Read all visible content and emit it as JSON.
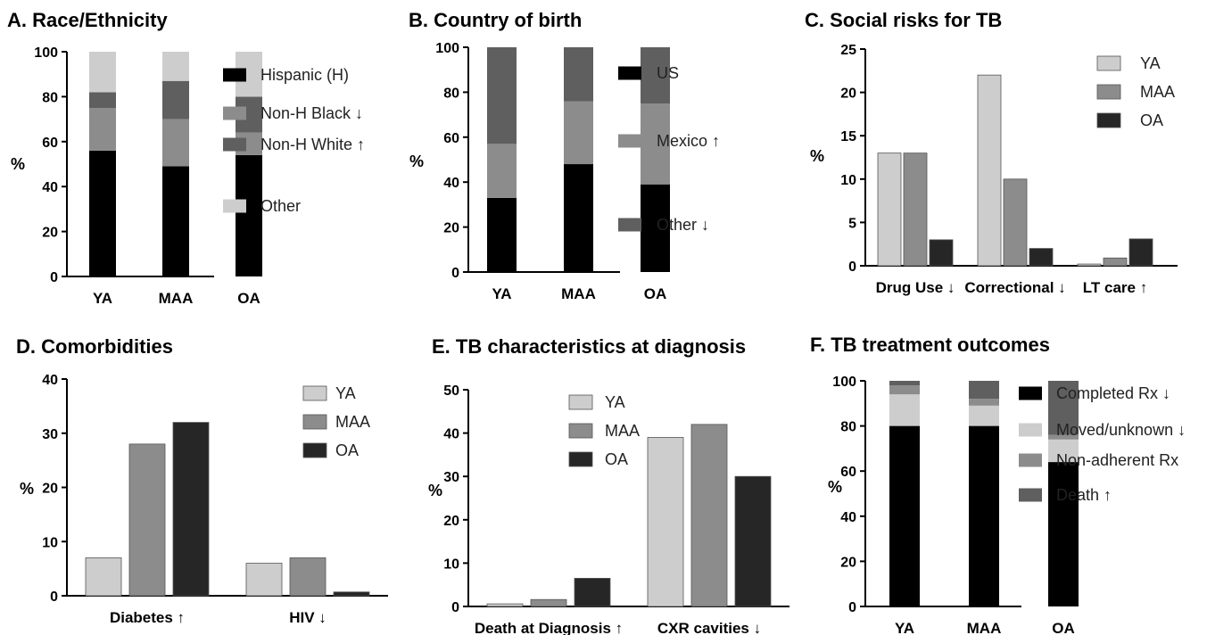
{
  "panels": [
    {
      "id": "A",
      "title": "A. Race/Ethnicity",
      "chart_data": {
        "type": "bar",
        "stacked": true,
        "title": "A. Race/Ethnicity",
        "xlabel": "",
        "ylabel": "%",
        "ylim": [
          0,
          100
        ],
        "yticks": [
          0,
          20,
          40,
          60,
          80,
          100
        ],
        "categories": [
          "YA",
          "MAA",
          "OA"
        ],
        "series": [
          {
            "name": "Hispanic (H)",
            "color": "#000000",
            "values": [
              56,
              49,
              54
            ]
          },
          {
            "name": "Non-H Black ↓",
            "color": "#8c8c8c",
            "values": [
              19,
              21,
              10
            ]
          },
          {
            "name": "Non-H White ↑",
            "color": "#5f5f5f",
            "values": [
              7,
              17,
              16
            ]
          },
          {
            "name": "Other",
            "color": "#cdcdcd",
            "values": [
              18,
              13,
              20
            ]
          }
        ],
        "legend": "right"
      }
    },
    {
      "id": "B",
      "title": "B. Country of birth",
      "chart_data": {
        "type": "bar",
        "stacked": true,
        "title": "B. Country of birth",
        "xlabel": "",
        "ylabel": "%",
        "ylim": [
          0,
          100
        ],
        "yticks": [
          0,
          20,
          40,
          60,
          80,
          100
        ],
        "categories": [
          "YA",
          "MAA",
          "OA"
        ],
        "series": [
          {
            "name": "US",
            "color": "#000000",
            "values": [
              33,
              48,
              39
            ]
          },
          {
            "name": "Mexico ↑",
            "color": "#8c8c8c",
            "values": [
              24,
              28,
              36
            ]
          },
          {
            "name": "Other ↓",
            "color": "#5f5f5f",
            "values": [
              43,
              24,
              25
            ]
          }
        ],
        "legend": "right"
      }
    },
    {
      "id": "C",
      "title": "C. Social risks for TB",
      "chart_data": {
        "type": "bar",
        "stacked": false,
        "title": "C. Social risks for TB",
        "xlabel": "",
        "ylabel": "%",
        "ylim": [
          0,
          25
        ],
        "yticks": [
          0,
          5,
          10,
          15,
          20,
          25
        ],
        "categories": [
          "Drug Use ↓",
          "Correctional ↓",
          "LT care ↑"
        ],
        "series": [
          {
            "name": "YA",
            "color": "#cdcdcd",
            "values": [
              13,
              22,
              0.2
            ]
          },
          {
            "name": "MAA",
            "color": "#8c8c8c",
            "values": [
              13,
              10,
              0.9
            ]
          },
          {
            "name": "OA",
            "color": "#262626",
            "values": [
              3,
              2,
              3.1
            ]
          }
        ],
        "legend": "top-right"
      }
    },
    {
      "id": "D",
      "title": "D. Comorbidities",
      "chart_data": {
        "type": "bar",
        "stacked": false,
        "title": "D. Comorbidities",
        "xlabel": "",
        "ylabel": "%",
        "ylim": [
          0,
          40
        ],
        "yticks": [
          0,
          10,
          20,
          30,
          40
        ],
        "categories": [
          "Diabetes ↑",
          "HIV ↓"
        ],
        "series": [
          {
            "name": "YA",
            "color": "#cdcdcd",
            "values": [
              7,
              6
            ]
          },
          {
            "name": "MAA",
            "color": "#8c8c8c",
            "values": [
              28,
              7
            ]
          },
          {
            "name": "OA",
            "color": "#262626",
            "values": [
              32,
              0.7
            ]
          }
        ],
        "legend": "top-right"
      }
    },
    {
      "id": "E",
      "title": "E. TB characteristics at diagnosis",
      "chart_data": {
        "type": "bar",
        "stacked": false,
        "title": "E. TB characteristics at diagnosis",
        "xlabel": "",
        "ylabel": "%",
        "ylim": [
          0,
          50
        ],
        "yticks": [
          0,
          10,
          20,
          30,
          40,
          50
        ],
        "categories": [
          "Death at Diagnosis ↑",
          "CXR cavities ↓"
        ],
        "series": [
          {
            "name": "YA",
            "color": "#cdcdcd",
            "values": [
              0.6,
              39
            ]
          },
          {
            "name": "MAA",
            "color": "#8c8c8c",
            "values": [
              1.6,
              42
            ]
          },
          {
            "name": "OA",
            "color": "#262626",
            "values": [
              6.5,
              30
            ]
          }
        ],
        "legend": "top-left"
      }
    },
    {
      "id": "F",
      "title": "F. TB treatment outcomes",
      "chart_data": {
        "type": "bar",
        "stacked": true,
        "title": "F. TB treatment outcomes",
        "xlabel": "",
        "ylabel": "%",
        "ylim": [
          0,
          100
        ],
        "yticks": [
          0,
          20,
          40,
          60,
          80,
          100
        ],
        "categories": [
          "YA",
          "MAA",
          "OA"
        ],
        "series": [
          {
            "name": "Completed Rx ↓",
            "color": "#000000",
            "values": [
              80,
              80,
              64
            ]
          },
          {
            "name": "Moved/unknown ↓",
            "color": "#cdcdcd",
            "values": [
              14,
              9,
              10
            ]
          },
          {
            "name": "Non-adherent Rx",
            "color": "#8c8c8c",
            "values": [
              4,
              3,
              2
            ]
          },
          {
            "name": "Death ↑",
            "color": "#5f5f5f",
            "values": [
              2,
              8,
              24
            ]
          }
        ],
        "legend": "right"
      }
    }
  ]
}
